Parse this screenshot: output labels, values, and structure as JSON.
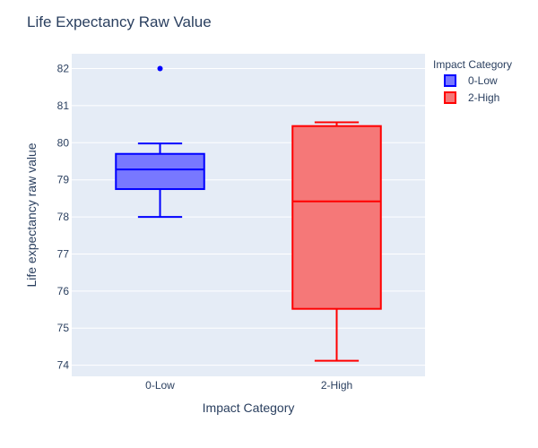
{
  "chart_data": {
    "type": "box",
    "title": "Life Expectancy Raw Value",
    "xlabel": "Impact Category",
    "ylabel": "Life expectancy raw value",
    "categories": [
      "0-Low",
      "2-High"
    ],
    "ylim": [
      73.7,
      82.4
    ],
    "yticks": [
      74,
      75,
      76,
      77,
      78,
      79,
      80,
      81,
      82
    ],
    "grid": true,
    "legend": {
      "title": "Impact Category",
      "placement": "top-right",
      "entries": [
        "0-Low",
        "2-High"
      ]
    },
    "series": [
      {
        "name": "0-Low",
        "color": "#0000ff",
        "fill": "#7878ff",
        "lowerfence": 78.0,
        "q1": 78.75,
        "median": 79.28,
        "q3": 79.7,
        "upperfence": 79.98,
        "outliers": [
          82.0
        ]
      },
      {
        "name": "2-High",
        "color": "#ff0000",
        "fill": "#f57878",
        "lowerfence": 74.12,
        "q1": 75.52,
        "median": 78.42,
        "q3": 80.45,
        "upperfence": 80.55,
        "outliers": []
      }
    ]
  }
}
